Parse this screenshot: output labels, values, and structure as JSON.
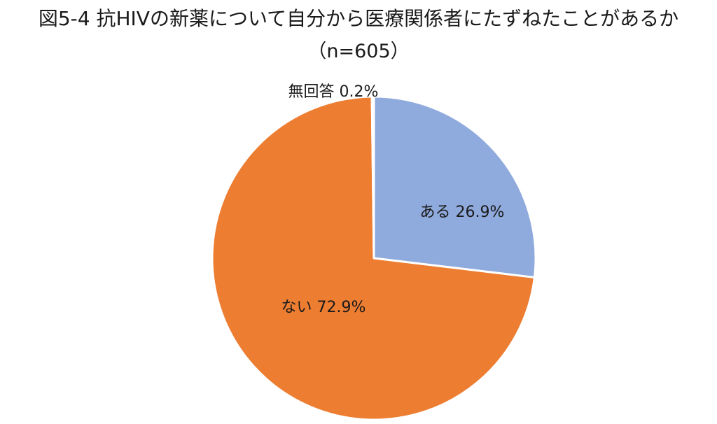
{
  "chart_data": {
    "type": "pie",
    "title": "図5-4 抗HIVの新薬について自分から医療関係者にたずねたことがあるか",
    "subtitle": "（n=605）",
    "slices": [
      {
        "label": "ある",
        "value": 26.9,
        "display": "ある 26.9%",
        "color": "#8faadc"
      },
      {
        "label": "ない",
        "value": 72.9,
        "display": "ない 72.9%",
        "color": "#ed7d31"
      },
      {
        "label": "無回答",
        "value": 0.2,
        "display": "無回答 0.2%",
        "color": "#a5a5a5"
      }
    ],
    "start_angle_deg": 0,
    "direction": "clockwise",
    "legend": "none"
  }
}
